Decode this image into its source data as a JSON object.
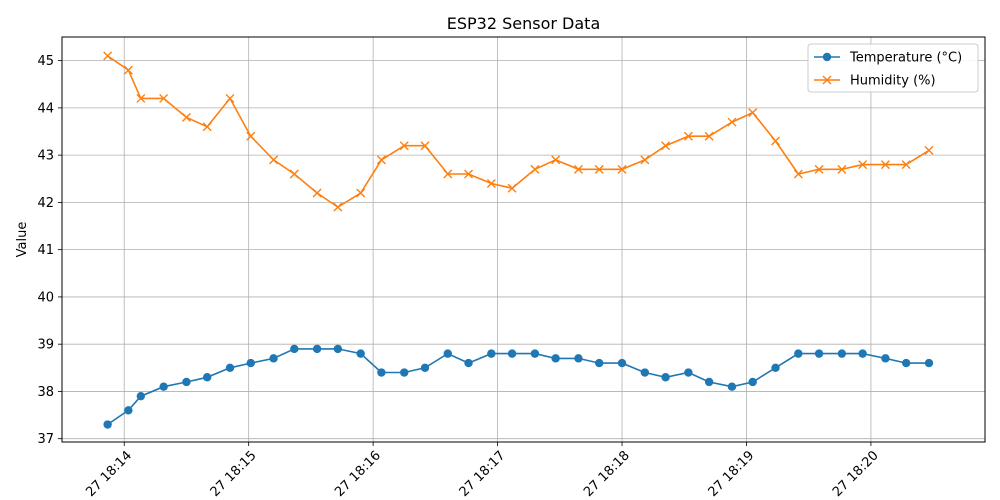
{
  "chart_data": {
    "type": "line",
    "title": "ESP32 Sensor Data",
    "xlabel": "",
    "ylabel": "Value",
    "ylim": [
      36.93,
      45.5
    ],
    "yticks": [
      37,
      38,
      39,
      40,
      41,
      42,
      43,
      44,
      45
    ],
    "xlim": [
      "18:13:30",
      "18:20:55"
    ],
    "xticks": [
      {
        "time": "18:14:00",
        "label": "27 18:14"
      },
      {
        "time": "18:15:00",
        "label": "27 18:15"
      },
      {
        "time": "18:16:00",
        "label": "27 18:16"
      },
      {
        "time": "18:17:00",
        "label": "27 18:17"
      },
      {
        "time": "18:18:00",
        "label": "27 18:18"
      },
      {
        "time": "18:19:00",
        "label": "27 18:19"
      },
      {
        "time": "18:20:00",
        "label": "27 18:20"
      }
    ],
    "grid": true,
    "legend_position": "top-right",
    "x": [
      "18:13:52",
      "18:14:02",
      "18:14:08",
      "18:14:19",
      "18:14:30",
      "18:14:40",
      "18:14:51",
      "18:15:01",
      "18:15:12",
      "18:15:22",
      "18:15:33",
      "18:15:43",
      "18:15:54",
      "18:16:04",
      "18:16:15",
      "18:16:25",
      "18:16:36",
      "18:16:46",
      "18:16:57",
      "18:17:07",
      "18:17:18",
      "18:17:28",
      "18:17:39",
      "18:17:49",
      "18:18:00",
      "18:18:11",
      "18:18:21",
      "18:18:32",
      "18:18:42",
      "18:18:53",
      "18:19:03",
      "18:19:14",
      "18:19:25",
      "18:19:35",
      "18:19:46",
      "18:19:56",
      "18:20:07",
      "18:20:17",
      "18:20:28"
    ],
    "series": [
      {
        "name": "Temperature (°C)",
        "color": "#1f77b4",
        "marker": "circle",
        "values": [
          37.3,
          37.6,
          37.9,
          38.1,
          38.2,
          38.3,
          38.5,
          38.6,
          38.7,
          38.9,
          38.9,
          38.9,
          38.8,
          38.4,
          38.4,
          38.5,
          38.8,
          38.6,
          38.8,
          38.8,
          38.8,
          38.7,
          38.7,
          38.6,
          38.6,
          38.4,
          38.3,
          38.4,
          38.2,
          38.1,
          38.2,
          38.5,
          38.8,
          38.8,
          38.8,
          38.8,
          38.7,
          38.6,
          38.6
        ]
      },
      {
        "name": "Humidity (%)",
        "color": "#ff7f0e",
        "marker": "x",
        "values": [
          45.1,
          44.8,
          44.2,
          44.2,
          43.8,
          43.6,
          44.2,
          43.4,
          42.9,
          42.6,
          42.2,
          41.9,
          42.2,
          42.9,
          43.2,
          43.2,
          42.6,
          42.6,
          42.4,
          42.3,
          42.7,
          42.9,
          42.7,
          42.7,
          42.7,
          42.9,
          43.2,
          43.4,
          43.4,
          43.7,
          43.9,
          43.3,
          42.6,
          42.7,
          42.7,
          42.8,
          42.8,
          42.8,
          43.1
        ]
      }
    ]
  }
}
